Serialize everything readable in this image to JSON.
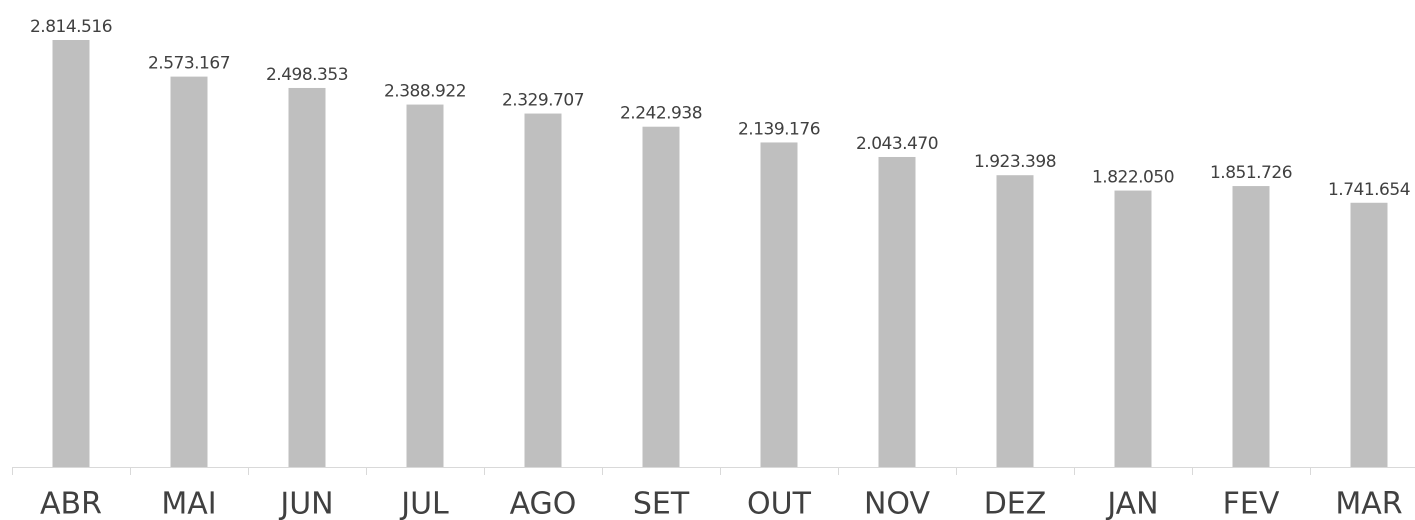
{
  "chart_data": {
    "type": "bar",
    "categories": [
      "ABR",
      "MAI",
      "JUN",
      "JUL",
      "AGO",
      "SET",
      "OUT",
      "NOV",
      "DEZ",
      "JAN",
      "FEV",
      "MAR"
    ],
    "values": [
      2814516,
      2573167,
      2498353,
      2388922,
      2329707,
      2242938,
      2139176,
      2043470,
      1923398,
      1822050,
      1851726,
      1741654
    ],
    "value_labels": [
      "2.814.516",
      "2.573.167",
      "2.498.353",
      "2.388.922",
      "2.329.707",
      "2.242.938",
      "2.139.176",
      "2.043.470",
      "1.923.398",
      "1.822.050",
      "1.851.726",
      "1.741.654"
    ],
    "color": "#bfbfbf"
  }
}
